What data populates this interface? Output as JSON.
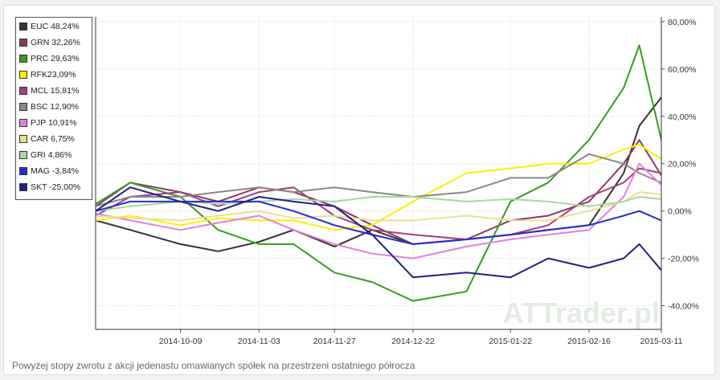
{
  "caption": "Powyżej stopy zwrotu z akcji jedenastu omawianych spółek na przestrzeni ostatniego półrocza",
  "watermark": "ATTrader.pl",
  "chart_data": {
    "type": "line",
    "x_ticks": [
      "2014-10-09",
      "2014-11-03",
      "2014-11-27",
      "2014-12-22",
      "2015-01-22",
      "2015-02-16",
      "2015-03-11"
    ],
    "y_ticks": [
      "80,00%",
      "60,00%",
      "40,00%",
      "20,00%",
      "0,00%",
      "-20,00%",
      "-40,00%"
    ],
    "ylim": [
      -50,
      82
    ],
    "grid": true,
    "legend_position": "top-left",
    "x": [
      "2014-09-12",
      "2014-09-23",
      "2014-10-09",
      "2014-10-21",
      "2014-11-03",
      "2014-11-14",
      "2014-11-27",
      "2014-12-09",
      "2014-12-22",
      "2015-01-08",
      "2015-01-22",
      "2015-02-03",
      "2015-02-16",
      "2015-02-27",
      "2015-03-04",
      "2015-03-11"
    ],
    "series": [
      {
        "name": "EUC 48,24%",
        "color": "#333333",
        "values": [
          -4,
          -8,
          -14,
          -17,
          -13,
          -8,
          -15,
          -8,
          -14,
          -12,
          -10,
          -8,
          -6,
          16,
          36,
          48
        ]
      },
      {
        "name": "GRN 32,26%",
        "color": "#8b3a62",
        "values": [
          2,
          12,
          8,
          4,
          10,
          8,
          2,
          -6,
          -14,
          -12,
          -4,
          -2,
          4,
          20,
          30,
          15
        ]
      },
      {
        "name": "PRC 29,63%",
        "color": "#3a9a22",
        "values": [
          3,
          12,
          6,
          -8,
          -14,
          -14,
          -26,
          -30,
          -38,
          -34,
          4,
          12,
          30,
          52,
          70,
          30
        ]
      },
      {
        "name": "RFK23,09%",
        "color": "#ffee00",
        "values": [
          -4,
          -2,
          -6,
          -3,
          -4,
          -4,
          -8,
          -6,
          4,
          16,
          18,
          20,
          20,
          26,
          28,
          22
        ]
      },
      {
        "name": "MCL 15,81%",
        "color": "#a0407c",
        "values": [
          -2,
          6,
          8,
          2,
          8,
          10,
          -2,
          -8,
          -10,
          -12,
          -10,
          -6,
          6,
          12,
          18,
          16
        ]
      },
      {
        "name": "BSC 12,90%",
        "color": "#888888",
        "values": [
          2,
          6,
          6,
          8,
          10,
          8,
          10,
          8,
          6,
          8,
          14,
          14,
          24,
          20,
          16,
          12
        ]
      },
      {
        "name": "PJP 10,91%",
        "color": "#e080e0",
        "values": [
          -1,
          -4,
          -8,
          -5,
          -2,
          -8,
          -14,
          -18,
          -20,
          -15,
          -12,
          -10,
          -8,
          6,
          20,
          11
        ]
      },
      {
        "name": "CAR 6,75%",
        "color": "#e8e090",
        "values": [
          -2,
          -3,
          -4,
          -2,
          0,
          -3,
          -2,
          -4,
          -4,
          -2,
          -4,
          -4,
          0,
          4,
          8,
          7
        ]
      },
      {
        "name": "GRI 4,86%",
        "color": "#a8d8a0",
        "values": [
          0,
          2,
          4,
          3,
          4,
          5,
          4,
          6,
          6,
          4,
          5,
          4,
          2,
          4,
          6,
          5
        ]
      },
      {
        "name": "MAG -3,84%",
        "color": "#2a2ad0",
        "values": [
          0,
          4,
          4,
          4,
          4,
          0,
          -6,
          -10,
          -14,
          -12,
          -10,
          -8,
          -6,
          -2,
          0,
          -4
        ]
      },
      {
        "name": "SKT -25,00%",
        "color": "#20208a",
        "values": [
          0,
          10,
          4,
          0,
          6,
          4,
          2,
          -10,
          -28,
          -26,
          -28,
          -20,
          -24,
          -20,
          -14,
          -25
        ]
      }
    ]
  }
}
